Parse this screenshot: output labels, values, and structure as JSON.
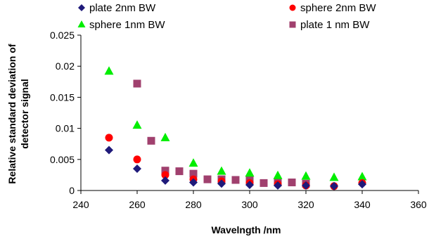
{
  "chart_data": {
    "type": "scatter",
    "title": "",
    "xlabel": "Wavelngth /nm",
    "ylabel": "Relative standard deviation of detector signal",
    "xlim": [
      240,
      360
    ],
    "ylim": [
      0,
      0.025
    ],
    "xticks": [
      240,
      260,
      280,
      300,
      320,
      340,
      360
    ],
    "xtick_labels": [
      "240",
      "260",
      "280",
      "300",
      "320",
      "340",
      "360"
    ],
    "yticks": [
      0,
      0.005,
      0.01,
      0.015,
      0.02,
      0.025
    ],
    "ytick_labels": [
      "0",
      "0.005",
      "0.01",
      "0.015",
      "0.02",
      "0.025"
    ],
    "grid": false,
    "legend": "top",
    "series": [
      {
        "name": "plate 2nm BW",
        "marker": "diamond",
        "color": "#1f1a7a",
        "x": [
          250,
          260,
          270,
          280,
          290,
          300,
          310,
          320,
          330,
          340
        ],
        "y": [
          0.0065,
          0.0035,
          0.0016,
          0.0013,
          0.0011,
          0.0009,
          0.0008,
          0.0008,
          0.0007,
          0.001
        ]
      },
      {
        "name": "sphere 2nm BW",
        "marker": "circle",
        "color": "#ff0000",
        "x": [
          250,
          260,
          270,
          280,
          290,
          300,
          310,
          320,
          330,
          340
        ],
        "y": [
          0.0085,
          0.005,
          0.0025,
          0.0018,
          0.0015,
          0.0012,
          0.001,
          0.0008,
          0.0007,
          0.0012
        ]
      },
      {
        "name": "sphere 1nm BW",
        "marker": "triangle",
        "color": "#00ee00",
        "x": [
          250,
          260,
          270,
          280,
          290,
          300,
          310,
          320,
          330,
          340
        ],
        "y": [
          0.0192,
          0.0105,
          0.0085,
          0.0044,
          0.0031,
          0.0028,
          0.0024,
          0.0023,
          0.0021,
          0.0022
        ]
      },
      {
        "name": "plate 1 nm BW",
        "marker": "square",
        "color": "#a0406e",
        "x": [
          260,
          265,
          270,
          275,
          280,
          285,
          290,
          295,
          300,
          305,
          310,
          315,
          320
        ],
        "y": [
          0.0172,
          0.008,
          0.0032,
          0.0031,
          0.0027,
          0.0018,
          0.0018,
          0.0017,
          0.0017,
          0.0012,
          0.0013,
          0.0013,
          0.0011
        ]
      }
    ]
  }
}
